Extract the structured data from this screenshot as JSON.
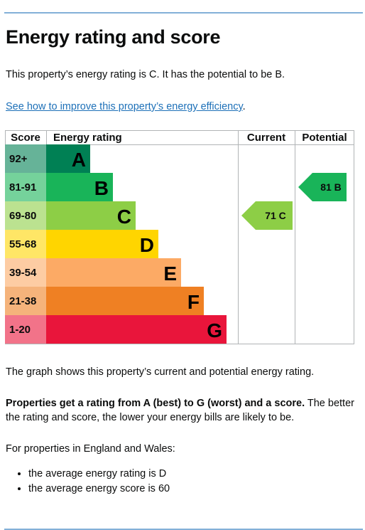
{
  "heading": "Energy rating and score",
  "summary": "This property’s energy rating is C. It has the potential to be B.",
  "improve_link": "See how to improve this property’s energy efficiency",
  "improve_link_suffix": ".",
  "chart_data": {
    "type": "bar",
    "headers": {
      "score": "Score",
      "rating": "Energy rating",
      "current": "Current",
      "potential": "Potential"
    },
    "bands": [
      {
        "range": "92+",
        "letter": "A",
        "color": "#008054",
        "range_bg": "#66b398",
        "text_color": "#000000"
      },
      {
        "range": "81-91",
        "letter": "B",
        "color": "#19b459",
        "range_bg": "#75d29b",
        "text_color": "#000000"
      },
      {
        "range": "69-80",
        "letter": "C",
        "color": "#8dce46",
        "range_bg": "#bbe290",
        "text_color": "#000000"
      },
      {
        "range": "55-68",
        "letter": "D",
        "color": "#ffd500",
        "range_bg": "#ffe666",
        "text_color": "#000000"
      },
      {
        "range": "39-54",
        "letter": "E",
        "color": "#fcaa65",
        "range_bg": "#fdcca3",
        "text_color": "#000000"
      },
      {
        "range": "21-38",
        "letter": "F",
        "color": "#ef8023",
        "range_bg": "#f5b37b",
        "text_color": "#000000"
      },
      {
        "range": "1-20",
        "letter": "G",
        "color": "#e9153b",
        "range_bg": "#f27389",
        "text_color": "#000000"
      }
    ],
    "current": {
      "score": 71,
      "letter": "C",
      "label": "71 C",
      "color": "#8dce46"
    },
    "potential": {
      "score": 81,
      "letter": "B",
      "label": "81 B",
      "color": "#19b459"
    }
  },
  "graph_note": "The graph shows this property’s current and potential energy rating.",
  "explain_bold": "Properties get a rating from A (best) to G (worst) and a score.",
  "explain_rest_line1": " The better",
  "explain_rest_line2": "the rating and score, the lower your energy bills are likely to be.",
  "region_note": "For properties in England and Wales:",
  "averages": [
    "the average energy rating is D",
    "the average energy score is 60"
  ]
}
